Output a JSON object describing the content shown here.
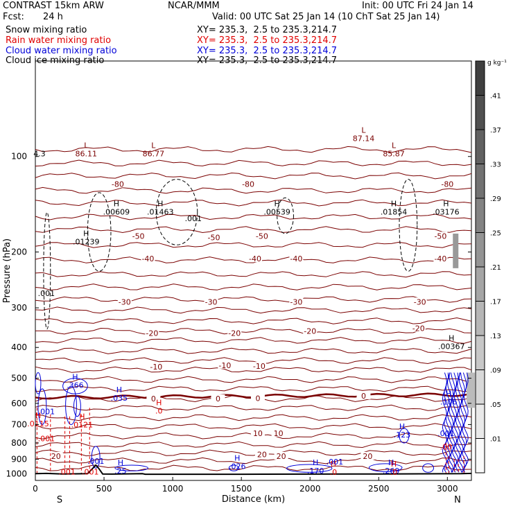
{
  "header": {
    "model": "CONTRAST 15km ARW",
    "center": "NCAR/MMM",
    "init": "Init: 00 UTC Fri 24 Jan 14",
    "fcst_label": "Fcst:",
    "fcst_value": "24 h",
    "valid": "Valid: 00 UTC Sat 25 Jan 14 (10 ChT Sat 25 Jan 14)"
  },
  "fields": [
    {
      "name": "Snow mixing ratio",
      "xy": "XY= 235.3,  2.5 to 235.3,214.7",
      "color": "#000000"
    },
    {
      "name": "Rain water mixing ratio",
      "xy": "XY= 235.3,  2.5 to 235.3,214.7",
      "color": "#e00000"
    },
    {
      "name": "Cloud water mixing ratio",
      "xy": "XY= 235.3,  2.5 to 235.3,214.7",
      "color": "#0000d8"
    },
    {
      "name": "Cloud ice mixing ratio",
      "xy": "XY= 235.3,  2.5 to 235.3,214.7",
      "color": "#000000"
    }
  ],
  "chart_data": {
    "type": "contour cross-section",
    "xlabel": "Distance (km)",
    "ylabel": "Pressure (hPa)",
    "xlim": [
      0,
      3175
    ],
    "ylim": [
      1050,
      50
    ],
    "y_scale": "log",
    "x_ticks": [
      0,
      500,
      1000,
      1500,
      2000,
      2500,
      3000
    ],
    "y_ticks": [
      100,
      200,
      300,
      400,
      500,
      600,
      700,
      800,
      900,
      1000
    ],
    "endpoints": {
      "left": "S",
      "right": "N"
    },
    "colorbar": {
      "unit": "g kg⁻¹",
      "levels": [
        0.01,
        0.05,
        0.09,
        0.13,
        0.17,
        0.21,
        0.25,
        0.29,
        0.33,
        0.37,
        0.41
      ],
      "labels": [
        ".01",
        ".05",
        ".09",
        ".13",
        ".17",
        ".21",
        ".25",
        ".29",
        ".33",
        ".37",
        ".41"
      ]
    },
    "temperature_contours": [
      {
        "label": "-80",
        "x": [
          600,
          1550,
          3000
        ],
        "p": [
          122,
          122,
          122
        ]
      },
      {
        "label": "-50",
        "x": [
          750,
          1300,
          1650,
          2950
        ],
        "p": [
          178,
          180,
          178,
          178
        ]
      },
      {
        "label": "-40",
        "x": [
          820,
          1600,
          1900,
          2950
        ],
        "p": [
          210,
          210,
          210,
          210
        ]
      },
      {
        "label": "-30",
        "x": [
          650,
          1280,
          1900,
          2800
        ],
        "p": [
          287,
          287,
          287,
          287
        ]
      },
      {
        "label": "-20",
        "x": [
          850,
          1450,
          2000,
          2790
        ],
        "p": [
          360,
          360,
          355,
          348
        ]
      },
      {
        "label": "-10",
        "x": [
          880,
          1380,
          1630
        ],
        "p": [
          460,
          455,
          458
        ]
      },
      {
        "label": "0",
        "x": [
          860,
          1330,
          1620,
          2390
        ],
        "p": [
          580,
          580,
          578,
          568
        ]
      },
      {
        "label": "10",
        "x": [
          1620,
          1770
        ],
        "p": [
          745,
          745
        ]
      },
      {
        "label": "20",
        "x": [
          150,
          1650,
          1790,
          2420
        ],
        "p": [
          880,
          870,
          880,
          880
        ]
      }
    ],
    "snow_maxima": [
      {
        "label": "H",
        "value": ".00609",
        "x": 590,
        "p": 145
      },
      {
        "label": "H",
        "value": ".01463",
        "x": 910,
        "p": 145
      },
      {
        "label": "H",
        "value": ".00539",
        "x": 1760,
        "p": 145
      },
      {
        "label": "H",
        "value": ".01854",
        "x": 2610,
        "p": 145
      },
      {
        "label": "H",
        "value": ".03176",
        "x": 2990,
        "p": 145
      },
      {
        "label": "H",
        "value": ".01239",
        "x": 370,
        "p": 180
      },
      {
        "label": "H",
        "value": ".00367",
        "x": 3030,
        "p": 385
      }
    ],
    "temperature_minima": [
      {
        "label": "L",
        "value": "86.11",
        "x": 370,
        "p": 95
      },
      {
        "label": "L",
        "value": "86.77",
        "x": 860,
        "p": 95
      },
      {
        "label": "L",
        "value": "87.14",
        "x": 2390,
        "p": 85
      },
      {
        "label": "L",
        "value": "85.87",
        "x": 2610,
        "p": 95
      }
    ],
    "cloud_water_maxima": [
      {
        "label": "H",
        "value": ".366",
        "x": 290,
        "p": 510
      },
      {
        "label": "H",
        "value": ".035",
        "x": 610,
        "p": 560
      },
      {
        "label": "H",
        "value": ".123",
        "x": 2670,
        "p": 730
      },
      {
        "label": "H",
        "value": ".106",
        "x": 3010,
        "p": 575
      },
      {
        "label": "H",
        "value": ".25",
        "x": 620,
        "p": 950
      },
      {
        "label": "H",
        "value": ".026",
        "x": 1470,
        "p": 920
      },
      {
        "label": "H",
        "value": ".170",
        "x": 2040,
        "p": 950
      },
      {
        "label": "H",
        "value": ".269",
        "x": 2590,
        "p": 950
      }
    ],
    "rain_maxima": [
      {
        "label": "H",
        "value": ".0115",
        "x": 20,
        "p": 675
      },
      {
        "label": "H",
        "value": ".0121",
        "x": 340,
        "p": 680
      },
      {
        "label": "H",
        "value": ".0",
        "x": 900,
        "p": 615
      },
      {
        "label": "H",
        "value": ".0",
        "x": 2170,
        "p": 960
      },
      {
        "label": "H",
        "value": ".0",
        "x": 2610,
        "p": 960
      }
    ],
    "small_labels": [
      {
        "text": ".001",
        "x": 80,
        "p": 275,
        "color": "black"
      },
      {
        "text": ".001",
        "x": 1150,
        "p": 160,
        "color": "black"
      },
      {
        "text": ".001",
        "x": 80,
        "p": 650,
        "color": "blue"
      },
      {
        "text": ".001",
        "x": 80,
        "p": 790,
        "color": "red"
      },
      {
        "text": ".001",
        "x": 440,
        "p": 930,
        "color": "blue"
      },
      {
        "text": ".001",
        "x": 2180,
        "p": 935,
        "color": "blue"
      },
      {
        "text": ".001",
        "x": 2990,
        "p": 760,
        "color": "blue"
      },
      {
        "text": ".00",
        "x": 2990,
        "p": 840,
        "color": "red"
      },
      {
        "text": ".001",
        "x": 230,
        "p": 1005,
        "color": "red"
      },
      {
        "text": ".001",
        "x": 400,
        "p": 1005,
        "color": "red"
      },
      {
        "text": "4.3",
        "x": 30,
        "p": 100,
        "color": "black"
      }
    ],
    "terrain": {
      "x": [
        0,
        80,
        200,
        380,
        420,
        440,
        460,
        490,
        560,
        780,
        800,
        1500,
        2500,
        3100,
        3175
      ],
      "p": [
        1000,
        998,
        1002,
        1000,
        960,
        940,
        960,
        1002,
        1003,
        1000,
        1004,
        1004,
        1002,
        1000,
        998
      ]
    }
  }
}
